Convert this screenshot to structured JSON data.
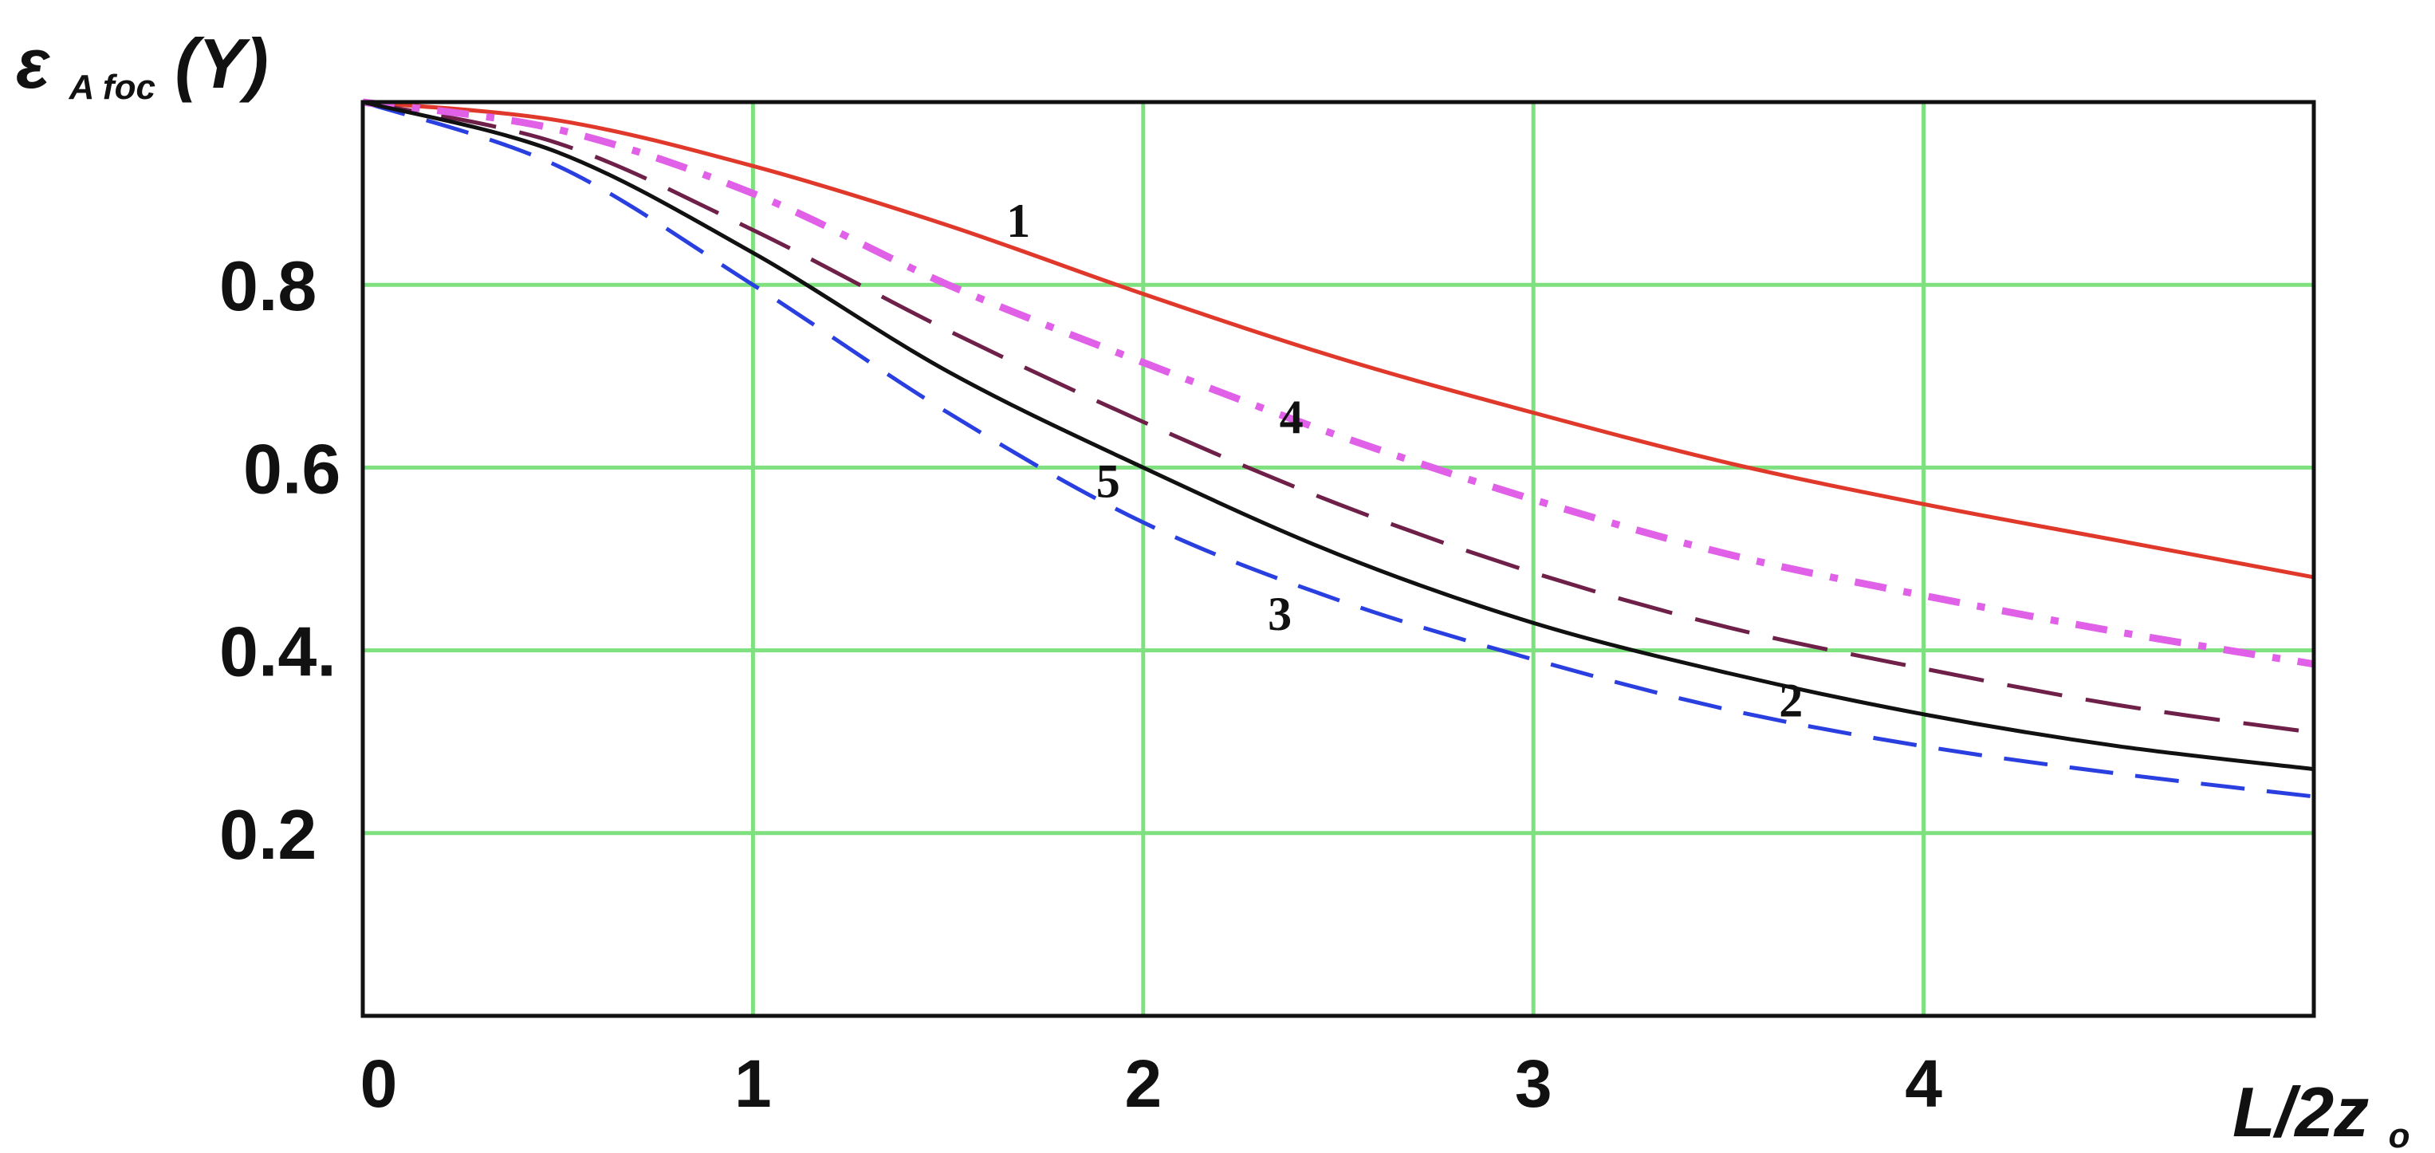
{
  "chart_data": {
    "type": "line",
    "ylabel": {
      "main": "ε",
      "sub": "A foc",
      "suffix": "(Y)"
    },
    "xlabel": {
      "main": "L/2z",
      "sub": "o"
    },
    "xlim": [
      0,
      5
    ],
    "ylim": [
      0,
      1
    ],
    "xticks": [
      0,
      1,
      2,
      3,
      4
    ],
    "xtick_labels": [
      "0",
      "1",
      "2",
      "3",
      "4"
    ],
    "yticks": [
      0.2,
      0.4,
      0.6,
      0.8
    ],
    "ytick_labels": [
      "0.2",
      "0.4.",
      "0.6",
      "0.8"
    ],
    "grid": true,
    "grid_color": "#7ee07e",
    "series": [
      {
        "name": "1",
        "color": "#e0392b",
        "dash": "solid",
        "x": [
          0,
          0.5,
          1,
          1.5,
          2,
          2.5,
          3,
          3.5,
          4,
          4.5,
          5
        ],
        "y": [
          1.0,
          0.98,
          0.93,
          0.865,
          0.79,
          0.72,
          0.66,
          0.605,
          0.56,
          0.52,
          0.48
        ]
      },
      {
        "name": "2",
        "color": "#6e2048",
        "dash": "long-dash",
        "x": [
          0,
          0.5,
          1,
          1.5,
          2,
          2.5,
          3,
          3.5,
          4,
          4.5,
          5
        ],
        "y": [
          1.0,
          0.955,
          0.86,
          0.75,
          0.65,
          0.56,
          0.485,
          0.425,
          0.38,
          0.34,
          0.31
        ]
      },
      {
        "name": "3",
        "color": "#2a3fe0",
        "dash": "dash",
        "x": [
          0,
          0.5,
          1,
          1.5,
          2,
          2.5,
          3,
          3.5,
          4,
          4.5,
          5
        ],
        "y": [
          1.0,
          0.93,
          0.8,
          0.66,
          0.54,
          0.455,
          0.39,
          0.335,
          0.295,
          0.265,
          0.24
        ]
      },
      {
        "name": "4",
        "color": "#e060e8",
        "dash": "dash-dot",
        "x": [
          0,
          0.5,
          1,
          1.5,
          2,
          2.5,
          3,
          3.5,
          4,
          4.5,
          5
        ],
        "y": [
          1.0,
          0.97,
          0.9,
          0.8,
          0.715,
          0.635,
          0.565,
          0.505,
          0.46,
          0.42,
          0.385
        ]
      },
      {
        "name": "5",
        "color": "#111111",
        "dash": "solid",
        "x": [
          0,
          0.5,
          1,
          1.5,
          2,
          2.5,
          3,
          3.5,
          4,
          4.5,
          5
        ],
        "y": [
          1.0,
          0.945,
          0.835,
          0.705,
          0.6,
          0.505,
          0.43,
          0.375,
          0.33,
          0.295,
          0.27
        ]
      }
    ],
    "annotations": [
      {
        "text": "1",
        "x": 1.68,
        "y": 0.87
      },
      {
        "text": "4",
        "x": 2.38,
        "y": 0.655
      },
      {
        "text": "5",
        "x": 1.91,
        "y": 0.585
      },
      {
        "text": "3",
        "x": 2.35,
        "y": 0.44
      },
      {
        "text": "2",
        "x": 3.66,
        "y": 0.345
      }
    ]
  }
}
